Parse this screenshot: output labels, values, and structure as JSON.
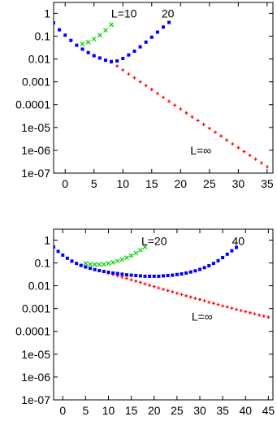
{
  "chart_data": [
    {
      "type": "scatter",
      "yscale": "log",
      "xlim": [
        -2,
        36
      ],
      "ylim": [
        1e-07,
        3
      ],
      "grid": false,
      "xticks": [
        0,
        5,
        10,
        15,
        20,
        25,
        30,
        35
      ],
      "xtick_labels": [
        "0",
        "5",
        "10",
        "15",
        "20",
        "25",
        "30",
        "35"
      ],
      "yticks": [
        1,
        0.1,
        0.01,
        0.001,
        0.0001,
        1e-05,
        1e-06,
        1e-07
      ],
      "ytick_labels": [
        "1",
        "0.1",
        "0.01",
        "0.001",
        "0.0001",
        "1e-05",
        "1e-06",
        "1e-07"
      ],
      "annotations": [
        {
          "text": "L=10",
          "x": 10.2,
          "y": 1.0
        },
        {
          "text": "20",
          "x": 17.8,
          "y": 1.0
        },
        {
          "text": "L=∞",
          "x": 23.5,
          "y": 1e-06
        }
      ],
      "series": [
        {
          "color": "#0000ff",
          "marker": "square",
          "x": [
            -2,
            -1,
            0,
            1,
            2,
            3,
            4,
            5,
            6,
            7,
            8,
            9,
            10,
            11,
            12,
            13,
            14,
            15,
            16,
            17,
            18
          ],
          "y": [
            0.38,
            0.19,
            0.11,
            0.065,
            0.04,
            0.027,
            0.019,
            0.014,
            0.011,
            0.0088,
            0.0077,
            0.0082,
            0.0105,
            0.015,
            0.022,
            0.034,
            0.055,
            0.09,
            0.15,
            0.25,
            0.4
          ]
        },
        {
          "color": "#00cc00",
          "marker": "x",
          "x": [
            3,
            4,
            5,
            6,
            7,
            8
          ],
          "y": [
            0.045,
            0.055,
            0.075,
            0.11,
            0.18,
            0.32
          ]
        },
        {
          "color": "#ff0000",
          "marker": "plus",
          "x": [
            8,
            9,
            10,
            11,
            12,
            13,
            14,
            15,
            16,
            17,
            18,
            19,
            20,
            21,
            22,
            23,
            24,
            25,
            26,
            27,
            28,
            29,
            30,
            31,
            32,
            33,
            34,
            35
          ],
          "y": [
            0.0072,
            0.0049,
            0.0033,
            0.0022,
            0.0015,
            0.001,
            0.00068,
            0.00046,
            0.00031,
            0.00021,
            0.00014,
            9.5e-05,
            6.4e-05,
            4.3e-05,
            2.9e-05,
            2e-05,
            1.35e-05,
            9.1e-06,
            6.2e-06,
            4.2e-06,
            2.8e-06,
            1.9e-06,
            1.3e-06,
            8.8e-07,
            6e-07,
            4.1e-07,
            2.8e-07,
            1.9e-07
          ]
        }
      ]
    },
    {
      "type": "scatter",
      "yscale": "log",
      "xlim": [
        -2,
        46
      ],
      "ylim": [
        1e-07,
        3
      ],
      "grid": false,
      "xticks": [
        0,
        5,
        10,
        15,
        20,
        25,
        30,
        35,
        40,
        45
      ],
      "xtick_labels": [
        "0",
        "5",
        "10",
        "15",
        "20",
        "25",
        "30",
        "35",
        "40",
        "45"
      ],
      "yticks": [
        1,
        0.1,
        0.01,
        0.001,
        0.0001,
        1e-05,
        1e-06,
        1e-07
      ],
      "ytick_labels": [
        "1",
        "0.1",
        "0.01",
        "0.001",
        "0.0001",
        "1e-05",
        "1e-06",
        "1e-07"
      ],
      "annotations": [
        {
          "text": "L=20",
          "x": 20.0,
          "y": 0.9
        },
        {
          "text": "40",
          "x": 38.4,
          "y": 0.9
        },
        {
          "text": "L=∞",
          "x": 30.5,
          "y": 0.00045
        }
      ],
      "series": [
        {
          "color": "#0000ff",
          "marker": "square",
          "x": [
            -2,
            -1,
            0,
            1,
            2,
            3,
            4,
            5,
            6,
            7,
            8,
            9,
            10,
            11,
            12,
            13,
            14,
            15,
            16,
            17,
            18,
            19,
            20,
            21,
            22,
            23,
            24,
            25,
            26,
            27,
            28,
            29,
            30,
            31,
            32,
            33,
            34,
            35,
            36,
            37,
            38
          ],
          "y": [
            0.5,
            0.32,
            0.22,
            0.16,
            0.12,
            0.095,
            0.078,
            0.066,
            0.058,
            0.051,
            0.046,
            0.042,
            0.039,
            0.036,
            0.034,
            0.032,
            0.03,
            0.029,
            0.028,
            0.027,
            0.026,
            0.026,
            0.026,
            0.026,
            0.027,
            0.028,
            0.029,
            0.031,
            0.033,
            0.036,
            0.04,
            0.045,
            0.052,
            0.062,
            0.075,
            0.095,
            0.125,
            0.17,
            0.24,
            0.34,
            0.48
          ]
        },
        {
          "color": "#00cc00",
          "marker": "x",
          "x": [
            5,
            6,
            7,
            8,
            9,
            10,
            11,
            12,
            13,
            14,
            15,
            16,
            17,
            18
          ],
          "y": [
            0.095,
            0.088,
            0.085,
            0.085,
            0.088,
            0.095,
            0.105,
            0.12,
            0.14,
            0.17,
            0.21,
            0.27,
            0.36,
            0.5
          ]
        },
        {
          "color": "#ff0000",
          "marker": "plus",
          "x": [
            10,
            11,
            12,
            13,
            14,
            15,
            16,
            17,
            18,
            19,
            20,
            21,
            22,
            23,
            24,
            25,
            26,
            27,
            28,
            29,
            30,
            31,
            32,
            33,
            34,
            35,
            36,
            37,
            38,
            39,
            40,
            41,
            42,
            43,
            44,
            45
          ],
          "y": [
            0.036,
            0.031,
            0.027,
            0.024,
            0.021,
            0.018,
            0.016,
            0.014,
            0.012,
            0.0105,
            0.0092,
            0.008,
            0.007,
            0.0061,
            0.0054,
            0.0047,
            0.0041,
            0.0036,
            0.0032,
            0.0028,
            0.0025,
            0.0022,
            0.0019,
            0.0017,
            0.0015,
            0.0013,
            0.00118,
            0.00104,
            0.00092,
            0.00082,
            0.00073,
            0.00065,
            0.00058,
            0.00052,
            0.00047,
            0.00042
          ]
        }
      ]
    }
  ]
}
